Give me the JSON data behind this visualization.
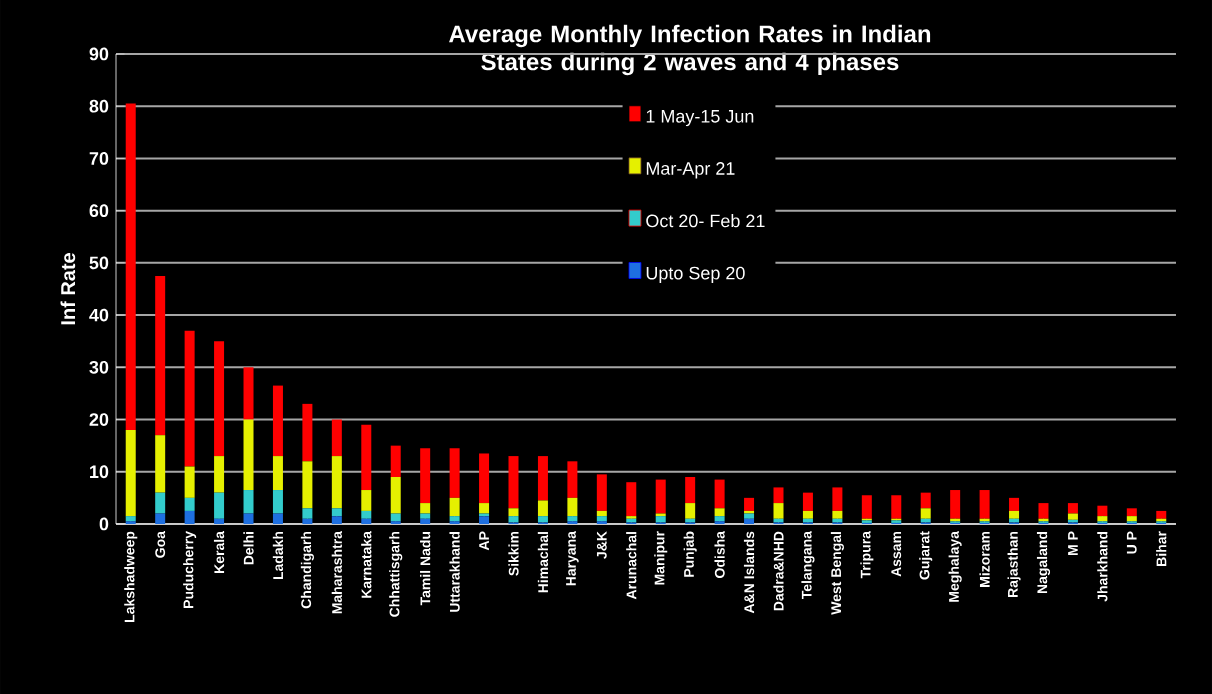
{
  "chart_data": {
    "type": "bar",
    "stacked": true,
    "title": "Average Monthly Infection Rates in Indian States during 2 waves and 4 phases",
    "ylabel": "Inf Rate",
    "categories": [
      "Lakshadweep",
      "Goa",
      "Puducherry",
      "Kerala",
      "Delhi",
      "Ladakh",
      "Chandigarh",
      "Maharashtra",
      "Karnataka",
      "Chhattisgarh",
      "Tamil Nadu",
      "Uttarakhand",
      "AP",
      "Sikkim",
      "Himachal",
      "Haryana",
      "J&K",
      "Arunachal",
      "Manipur",
      "Punjab",
      "Odisha",
      "A&N Islands",
      "Dadra&NHD",
      "Telangana",
      "West Bengal",
      "Tripura",
      "Assam",
      "Gujarat",
      "Meghalaya",
      "Mizoram",
      "Rajasthan",
      "Nagaland",
      "M P",
      "Jharkhand",
      "U P",
      "Bihar"
    ],
    "series": [
      {
        "name": "Upto Sep 20",
        "color": "#1e6fe0",
        "values": [
          0.5,
          2,
          2.5,
          1,
          2,
          2,
          1,
          1.5,
          1,
          0.5,
          1,
          0.5,
          1.5,
          0.3,
          0.3,
          0.5,
          0.5,
          0.3,
          0.3,
          0.3,
          0.5,
          1,
          0.3,
          0.3,
          0.3,
          0.2,
          0.2,
          0.3,
          0.2,
          0.2,
          0.3,
          0.2,
          0.3,
          0.2,
          0.2,
          0.2
        ]
      },
      {
        "name": "Oct 20- Feb 21",
        "color": "#33cccc",
        "values": [
          1,
          4,
          2.5,
          5,
          4.5,
          4.5,
          2,
          1.5,
          1.5,
          1.5,
          1,
          1,
          0.5,
          1.2,
          1.2,
          1,
          1,
          0.7,
          1.2,
          0.7,
          1,
          1,
          0.7,
          0.7,
          0.7,
          0.5,
          0.5,
          0.7,
          0.3,
          0.3,
          0.7,
          0.3,
          0.5,
          0.3,
          0.3,
          0.3
        ]
      },
      {
        "name": "Mar-Apr 21",
        "color": "#e5f000",
        "values": [
          16.5,
          11,
          6,
          7,
          13.5,
          6.5,
          9,
          10,
          4,
          7,
          2,
          3.5,
          2,
          1.5,
          3,
          3.5,
          1,
          0.5,
          0.5,
          3,
          1.5,
          0.5,
          3,
          1.5,
          1.5,
          0.3,
          0.3,
          2,
          0.5,
          0.5,
          1.5,
          0.5,
          1.2,
          1,
          1,
          0.5
        ]
      },
      {
        "name": "1 May-15 Jun",
        "color": "#ff0000",
        "values": [
          62.5,
          30.5,
          26,
          22,
          10,
          13.5,
          11,
          7,
          12.5,
          6,
          10.5,
          9.5,
          9.5,
          10,
          8.5,
          7,
          7,
          6.5,
          6.5,
          5,
          5.5,
          2.5,
          3,
          3.5,
          4.5,
          4.5,
          4.5,
          3,
          5.5,
          5.5,
          2.5,
          3,
          2,
          2,
          1.5,
          1.5
        ]
      }
    ],
    "ylim": [
      0,
      90
    ],
    "yticks": [
      0,
      10,
      20,
      30,
      40,
      50,
      60,
      70,
      80,
      90
    ],
    "grid": "y",
    "legend": "top"
  }
}
